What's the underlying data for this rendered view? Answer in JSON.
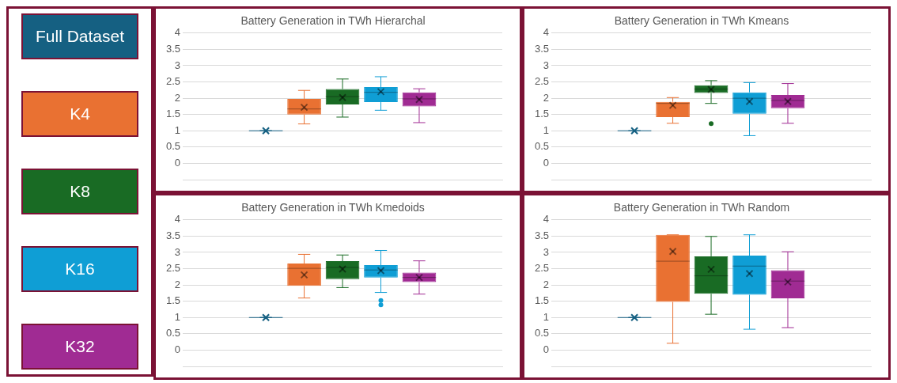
{
  "chart_data": [
    {
      "type": "box",
      "title": "Battery Generation in TWh Hierarchal",
      "categories": [
        null
      ],
      "ylim": [
        -0.5,
        4
      ],
      "yticks": [
        0,
        0.5,
        1,
        1.5,
        2,
        2.5,
        3,
        3.5,
        4
      ],
      "grid": "y",
      "tick_labels": "y",
      "legend": "left",
      "series": [
        {
          "name": "Full Dataset",
          "color": "#156082",
          "boxes": [
            {
              "low": 1,
              "q1": 1,
              "median": 1,
              "q3": 1,
              "high": 1,
              "mean": 1
            }
          ]
        },
        {
          "name": "K4",
          "color": "#e97132",
          "boxes": [
            {
              "low": 1.21,
              "q1": 1.5,
              "median": 1.67,
              "q3": 1.98,
              "high": 2.24,
              "mean": 1.72
            }
          ]
        },
        {
          "name": "K8",
          "color": "#196b24",
          "boxes": [
            {
              "low": 1.42,
              "q1": 1.81,
              "median": 2.05,
              "q3": 2.28,
              "high": 2.59,
              "mean": 2.02
            }
          ]
        },
        {
          "name": "K16",
          "color": "#0f9ed5",
          "boxes": [
            {
              "low": 1.63,
              "q1": 1.88,
              "median": 2.18,
              "q3": 2.34,
              "high": 2.66,
              "mean": 2.2
            }
          ]
        },
        {
          "name": "K32",
          "color": "#a02b93",
          "boxes": [
            {
              "low": 1.25,
              "q1": 1.75,
              "median": 1.98,
              "q3": 2.18,
              "high": 2.29,
              "mean": 1.96
            }
          ]
        }
      ]
    },
    {
      "type": "box",
      "title": "Battery Generation in TWh Kmeans",
      "categories": [
        null
      ],
      "ylim": [
        -0.5,
        4
      ],
      "yticks": [
        0,
        0.5,
        1,
        1.5,
        2,
        2.5,
        3,
        3.5,
        4
      ],
      "grid": "y",
      "tick_labels": "y",
      "series": [
        {
          "color": "#156082",
          "boxes": [
            {
              "low": 1,
              "q1": 1,
              "median": 1,
              "q3": 1,
              "high": 1,
              "mean": 1
            }
          ]
        },
        {
          "color": "#e97132",
          "boxes": [
            {
              "low": 1.23,
              "q1": 1.42,
              "median": 1.84,
              "q3": 1.89,
              "high": 2.02,
              "mean": 1.78
            }
          ]
        },
        {
          "color": "#196b24",
          "boxes": [
            {
              "low": 1.84,
              "q1": 2.16,
              "median": 2.28,
              "q3": 2.4,
              "high": 2.54,
              "mean": 2.27,
              "outliers": [
                1.22
              ]
            }
          ]
        },
        {
          "color": "#0f9ed5",
          "boxes": [
            {
              "low": 0.85,
              "q1": 1.52,
              "median": 2,
              "q3": 2.18,
              "high": 2.48,
              "mean": 1.9
            }
          ]
        },
        {
          "color": "#a02b93",
          "boxes": [
            {
              "low": 1.23,
              "q1": 1.69,
              "median": 1.93,
              "q3": 2.1,
              "high": 2.45,
              "mean": 1.9
            }
          ]
        }
      ]
    },
    {
      "type": "box",
      "title": "Battery Generation in TWh Kmedoids",
      "categories": [
        null
      ],
      "ylim": [
        -0.5,
        4
      ],
      "yticks": [
        0,
        0.5,
        1,
        1.5,
        2,
        2.5,
        3,
        3.5,
        4
      ],
      "grid": "y",
      "tick_labels": "y",
      "series": [
        {
          "color": "#156082",
          "boxes": [
            {
              "low": 1,
              "q1": 1,
              "median": 1,
              "q3": 1,
              "high": 1,
              "mean": 1
            }
          ]
        },
        {
          "color": "#e97132",
          "boxes": [
            {
              "low": 1.6,
              "q1": 1.97,
              "median": 2.51,
              "q3": 2.66,
              "high": 2.94,
              "mean": 2.31
            }
          ]
        },
        {
          "color": "#196b24",
          "boxes": [
            {
              "low": 1.92,
              "q1": 2.18,
              "median": 2.54,
              "q3": 2.73,
              "high": 2.92,
              "mean": 2.49
            }
          ]
        },
        {
          "color": "#0f9ed5",
          "boxes": [
            {
              "low": 1.77,
              "q1": 2.23,
              "median": 2.46,
              "q3": 2.61,
              "high": 3.06,
              "mean": 2.44,
              "outliers": [
                1.52,
                1.39
              ]
            }
          ]
        },
        {
          "color": "#a02b93",
          "boxes": [
            {
              "low": 1.72,
              "q1": 2.09,
              "median": 2.23,
              "q3": 2.38,
              "high": 2.74,
              "mean": 2.23
            }
          ]
        }
      ]
    },
    {
      "type": "box",
      "title": "Battery Generation in TWh Random",
      "categories": [
        null
      ],
      "ylim": [
        -0.5,
        4
      ],
      "yticks": [
        0,
        0.5,
        1,
        1.5,
        2,
        2.5,
        3,
        3.5,
        4
      ],
      "grid": "y",
      "tick_labels": "y",
      "series": [
        {
          "color": "#156082",
          "boxes": [
            {
              "low": 1,
              "q1": 1,
              "median": 1,
              "q3": 1,
              "high": 1,
              "mean": 1
            }
          ]
        },
        {
          "color": "#e97132",
          "boxes": [
            {
              "low": 0.21,
              "q1": 1.48,
              "median": 2.73,
              "q3": 3.54,
              "high": 3.54,
              "mean": 3.03
            }
          ]
        },
        {
          "color": "#196b24",
          "boxes": [
            {
              "low": 1.1,
              "q1": 1.73,
              "median": 2.28,
              "q3": 2.88,
              "high": 3.49,
              "mean": 2.48
            }
          ]
        },
        {
          "color": "#0f9ed5",
          "boxes": [
            {
              "low": 0.64,
              "q1": 1.7,
              "median": 2.58,
              "q3": 2.9,
              "high": 3.54,
              "mean": 2.35
            }
          ]
        },
        {
          "color": "#a02b93",
          "boxes": [
            {
              "low": 0.69,
              "q1": 1.59,
              "median": 2.12,
              "q3": 2.45,
              "high": 3.02,
              "mean": 2.09
            }
          ]
        }
      ]
    }
  ]
}
